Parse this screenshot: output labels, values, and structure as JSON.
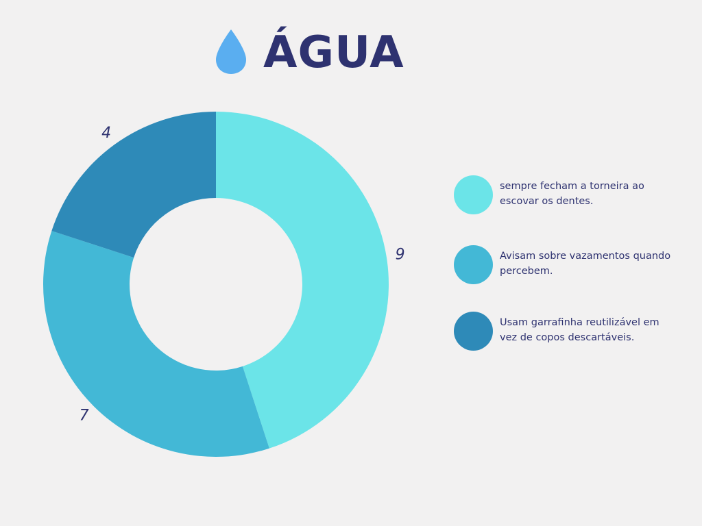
{
  "title": "ÁGUA",
  "icon": "water-drop-icon",
  "colors": {
    "background": "#f2f1f1",
    "title": "#2e3270",
    "drop": "#5aaef0"
  },
  "chart_data": {
    "type": "pie",
    "title": "ÁGUA",
    "donut": true,
    "categories": [
      "sempre fecham a torneira ao escovar os dentes.",
      "Avisam sobre vazamentos quando percebem.",
      "Usam garrafinha reutilizável em vez de copos descartáveis."
    ],
    "values": [
      9,
      7,
      4
    ],
    "data_labels": [
      "9",
      "7",
      "4"
    ],
    "colors": [
      "#6be4e8",
      "#43b8d6",
      "#2e8ab8"
    ],
    "legend_position": "right"
  }
}
